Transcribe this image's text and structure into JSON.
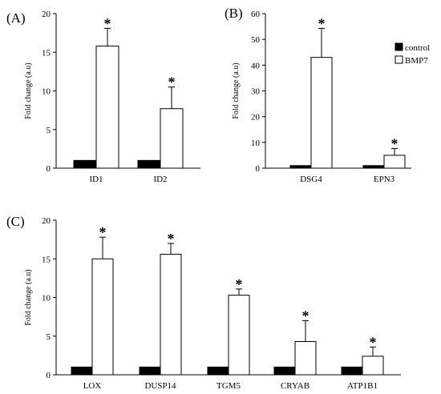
{
  "legend": [
    {
      "name": "control",
      "color": "#000000"
    },
    {
      "name": "BMP7",
      "color": "#ffffff"
    }
  ],
  "chart_data": [
    {
      "panel": "(A)",
      "type": "bar",
      "ylabel": "Fold change (a.u)",
      "ylim": [
        0,
        20
      ],
      "yticks": [
        0,
        5,
        10,
        15,
        20
      ],
      "categories": [
        "ID1",
        "ID2"
      ],
      "series": [
        {
          "name": "control",
          "values": [
            1,
            1
          ]
        },
        {
          "name": "BMP7",
          "values": [
            15.8,
            7.7
          ],
          "errors": [
            2.3,
            2.8
          ]
        }
      ],
      "annotations": [
        "*",
        "*"
      ]
    },
    {
      "panel": "(B)",
      "type": "bar",
      "ylabel": "Fold change (a.u)",
      "ylim": [
        0,
        60
      ],
      "yticks": [
        0,
        10,
        20,
        30,
        40,
        50,
        60
      ],
      "categories": [
        "DSG4",
        "EPN3"
      ],
      "series": [
        {
          "name": "control",
          "values": [
            1,
            1
          ]
        },
        {
          "name": "BMP7",
          "values": [
            43,
            5
          ],
          "errors": [
            11.3,
            2.6
          ]
        }
      ],
      "annotations": [
        "*",
        "*"
      ]
    },
    {
      "panel": "(C)",
      "type": "bar",
      "ylabel": "Fold change (a.u)",
      "ylim": [
        0,
        20
      ],
      "yticks": [
        0,
        5,
        10,
        15,
        20
      ],
      "categories": [
        "LOX",
        "DUSP14",
        "TGM5",
        "CRYAB",
        "ATP1B1"
      ],
      "series": [
        {
          "name": "control",
          "values": [
            1,
            1,
            1,
            1,
            1
          ]
        },
        {
          "name": "BMP7",
          "values": [
            15,
            15.6,
            10.3,
            4.3,
            2.4
          ],
          "errors": [
            2.8,
            1.4,
            0.8,
            2.7,
            1.2
          ]
        }
      ],
      "annotations": [
        "*",
        "*",
        "*",
        "*",
        "*"
      ]
    }
  ]
}
